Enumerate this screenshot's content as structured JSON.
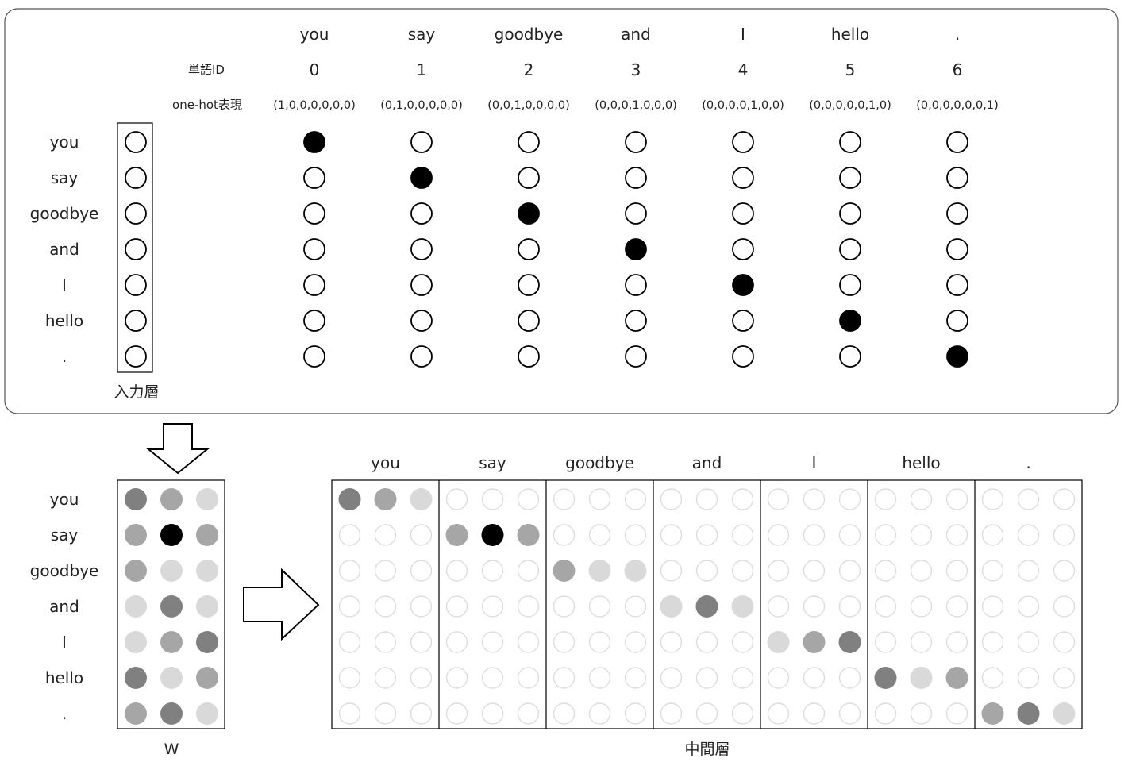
{
  "words": [
    "you",
    "say",
    "goodbye",
    "and",
    "I",
    "hello",
    "."
  ],
  "ids": [
    "0",
    "1",
    "2",
    "3",
    "4",
    "5",
    "6"
  ],
  "onehot": [
    "(1,0,0,0,0,0,0)",
    "(0,1,0,0,0,0,0)",
    "(0,0,1,0,0,0,0)",
    "(0,0,0,1,0,0,0)",
    "(0,0,0,0,1,0,0)",
    "(0,0,0,0,0,1,0)",
    "(0,0,0,0,0,0,1)"
  ],
  "labels": {
    "word_id": "単語ID",
    "onehot": "one-hot表現",
    "input_layer": "入力層",
    "weight": "W",
    "hidden_layer": "中間層"
  },
  "weights": [
    [
      3,
      2,
      1
    ],
    [
      2,
      4,
      2
    ],
    [
      2,
      1,
      1
    ],
    [
      1,
      3,
      1
    ],
    [
      1,
      2,
      3
    ],
    [
      3,
      1,
      2
    ],
    [
      2,
      3,
      1
    ]
  ],
  "colors": {
    "shade": [
      "#ffffff",
      "#d9d9d9",
      "#a6a6a6",
      "#808080",
      "#000000"
    ],
    "outline": "#000000",
    "faint_outline": "#dddddd",
    "panel_border": "#555555"
  }
}
